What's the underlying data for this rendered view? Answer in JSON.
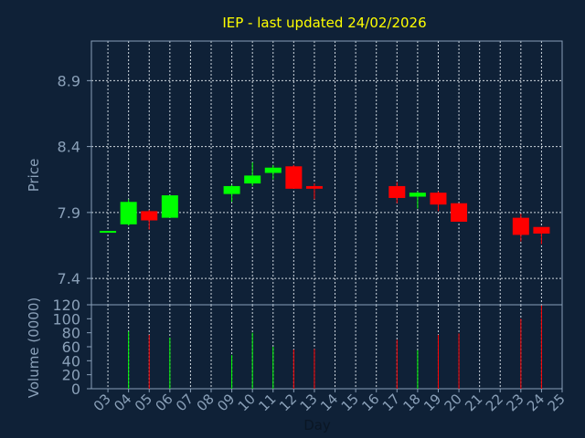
{
  "chart_data": {
    "type": "candlestick",
    "title": "IEP - last updated 24/02/2026",
    "price_axis": {
      "label": "Price",
      "ylim": [
        7.2,
        9.2
      ],
      "ticks": [
        {
          "value": 7.4,
          "label": "7.4"
        },
        {
          "value": 7.9,
          "label": "7.9"
        },
        {
          "value": 8.4,
          "label": "8.4"
        },
        {
          "value": 8.9,
          "label": "8.9"
        }
      ]
    },
    "volume_axis": {
      "label": "Volume (0000)",
      "ylim": [
        0,
        120
      ],
      "ticks": [
        {
          "value": 0,
          "label": "0"
        },
        {
          "value": 20,
          "label": "20"
        },
        {
          "value": 40,
          "label": "40"
        },
        {
          "value": 60,
          "label": "60"
        },
        {
          "value": 80,
          "label": "80"
        },
        {
          "value": 100,
          "label": "100"
        },
        {
          "value": 120,
          "label": "120"
        }
      ]
    },
    "x_axis": {
      "label": "Day",
      "ticks": [
        {
          "value": 3,
          "label": "03"
        },
        {
          "value": 4,
          "label": "04"
        },
        {
          "value": 5,
          "label": "05"
        },
        {
          "value": 6,
          "label": "06"
        },
        {
          "value": 7,
          "label": "07"
        },
        {
          "value": 8,
          "label": "08"
        },
        {
          "value": 9,
          "label": "09"
        },
        {
          "value": 10,
          "label": "10"
        },
        {
          "value": 11,
          "label": "11"
        },
        {
          "value": 12,
          "label": "12"
        },
        {
          "value": 13,
          "label": "13"
        },
        {
          "value": 14,
          "label": "14"
        },
        {
          "value": 15,
          "label": "15"
        },
        {
          "value": 16,
          "label": "16"
        },
        {
          "value": 17,
          "label": "17"
        },
        {
          "value": 18,
          "label": "18"
        },
        {
          "value": 19,
          "label": "19"
        },
        {
          "value": 20,
          "label": "20"
        },
        {
          "value": 21,
          "label": "21"
        },
        {
          "value": 22,
          "label": "22"
        },
        {
          "value": 23,
          "label": "23"
        },
        {
          "value": 24,
          "label": "24"
        },
        {
          "value": 25,
          "label": "25"
        }
      ]
    },
    "grid": true,
    "colors": {
      "background": "#0f2137",
      "up": "#00ff00",
      "down": "#ff0000",
      "title": "#ffff00",
      "axis_text": "#8aa0b8",
      "frame": "#8aa0b8",
      "grid": "#d0d8e0"
    },
    "candles": [
      {
        "day": 3,
        "open": 7.76,
        "high": 7.76,
        "low": 7.76,
        "close": 7.76,
        "volume": 0
      },
      {
        "day": 4,
        "open": 7.81,
        "high": 8.0,
        "low": 7.8,
        "close": 7.98,
        "volume": 82
      },
      {
        "day": 5,
        "open": 7.91,
        "high": 7.92,
        "low": 7.77,
        "close": 7.84,
        "volume": 77
      },
      {
        "day": 6,
        "open": 7.86,
        "high": 8.03,
        "low": 7.86,
        "close": 8.03,
        "volume": 73
      },
      {
        "day": 9,
        "open": 8.04,
        "high": 8.11,
        "low": 7.98,
        "close": 8.1,
        "volume": 48
      },
      {
        "day": 10,
        "open": 8.12,
        "high": 8.28,
        "low": 8.1,
        "close": 8.18,
        "volume": 80
      },
      {
        "day": 11,
        "open": 8.2,
        "high": 8.26,
        "low": 8.15,
        "close": 8.24,
        "volume": 60
      },
      {
        "day": 12,
        "open": 8.25,
        "high": 8.26,
        "low": 8.08,
        "close": 8.08,
        "volume": 56
      },
      {
        "day": 13,
        "open": 8.1,
        "high": 8.12,
        "low": 8.0,
        "close": 8.08,
        "volume": 57
      },
      {
        "day": 17,
        "open": 8.1,
        "high": 8.13,
        "low": 7.97,
        "close": 8.01,
        "volume": 70
      },
      {
        "day": 18,
        "open": 8.02,
        "high": 8.06,
        "low": 7.93,
        "close": 8.05,
        "volume": 55
      },
      {
        "day": 19,
        "open": 8.05,
        "high": 8.06,
        "low": 7.91,
        "close": 7.96,
        "volume": 77
      },
      {
        "day": 20,
        "open": 7.97,
        "high": 7.97,
        "low": 7.83,
        "close": 7.83,
        "volume": 79
      },
      {
        "day": 23,
        "open": 7.86,
        "high": 7.89,
        "low": 7.68,
        "close": 7.73,
        "volume": 100
      },
      {
        "day": 24,
        "open": 7.79,
        "high": 7.79,
        "low": 7.66,
        "close": 7.74,
        "volume": 119
      }
    ]
  }
}
